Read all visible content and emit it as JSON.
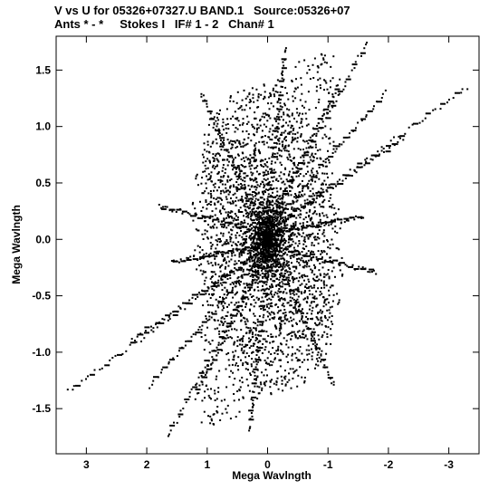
{
  "chart_data": {
    "type": "scatter",
    "title_line1": "V vs U for 05326+07327.U BAND.1   Source:05326+07",
    "title_line2": "Ants * - *     Stokes I   IF# 1 - 2   Chan# 1",
    "xlabel": "Mega Wavlngth",
    "ylabel": "Mega Wavlngth",
    "xlim": [
      3.5,
      -3.5
    ],
    "ylim": [
      -1.9,
      1.8
    ],
    "x_inverted": true,
    "xticks": [
      3,
      2,
      1,
      0,
      -1,
      -2,
      -3
    ],
    "yticks": [
      1.5,
      1.0,
      0.5,
      0.0,
      -0.5,
      -1.0,
      -1.5
    ],
    "ytick_labels": [
      "1.5",
      "1.0",
      "0.5",
      "0.0",
      "-0.5",
      "-1.0",
      "-1.5"
    ],
    "grid": false,
    "marker_color": "#000000",
    "series": [
      {
        "values": "uv-coverage points; symmetric about origin (u,v) and (-u,-v)",
        "spokes": [
          {
            "u_start": 0.05,
            "v_start": 0.05,
            "u_end": -1.65,
            "v_end": 1.75
          },
          {
            "u_start": 0.05,
            "v_start": 0.05,
            "u_end": -1.95,
            "v_end": 1.3
          },
          {
            "u_start": 0.05,
            "v_start": 0.05,
            "u_end": -2.25,
            "v_end": 0.9
          },
          {
            "u_start": 0.05,
            "v_start": 0.05,
            "u_end": -3.3,
            "v_end": 1.35
          },
          {
            "u_start": 0.05,
            "v_start": 0.05,
            "u_end": -1.2,
            "v_end": 1.4
          },
          {
            "u_start": 0.05,
            "v_start": 0.05,
            "u_end": -0.3,
            "v_end": 1.7
          },
          {
            "u_start": 0.05,
            "v_start": 0.05,
            "u_end": 1.1,
            "v_end": 1.3
          },
          {
            "u_start": 0.05,
            "v_start": 0.05,
            "u_end": 1.8,
            "v_end": 0.3
          },
          {
            "u_start": 0.05,
            "v_start": 0.05,
            "u_end": -1.6,
            "v_end": 0.2
          }
        ]
      }
    ]
  }
}
